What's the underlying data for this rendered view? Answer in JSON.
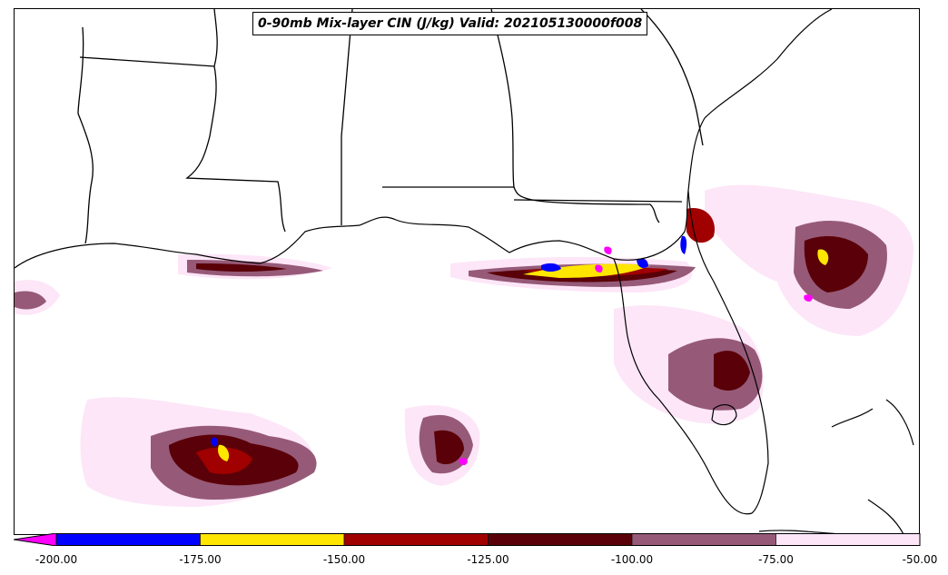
{
  "title": "0-90mb Mix-layer CIN (J/kg) Valid: 202105130000f008",
  "colorbar": {
    "extend": "min",
    "ticks": [
      "-200.00",
      "-175.00",
      "-150.00",
      "-125.00",
      "-100.00",
      "-75.00",
      "-50.00"
    ],
    "levels": [
      {
        "from": -225,
        "to": -200,
        "color": "#ff00ff"
      },
      {
        "from": -200,
        "to": -175,
        "color": "#0000ff"
      },
      {
        "from": -175,
        "to": -150,
        "color": "#ffe600"
      },
      {
        "from": -150,
        "to": -125,
        "color": "#a00000"
      },
      {
        "from": -125,
        "to": -100,
        "color": "#5a0008"
      },
      {
        "from": -100,
        "to": -75,
        "color": "#965a78"
      },
      {
        "from": -75,
        "to": -50,
        "color": "#fde6f8"
      }
    ]
  },
  "map": {
    "region": "US Gulf Coast and Florida",
    "field": "CIN"
  }
}
